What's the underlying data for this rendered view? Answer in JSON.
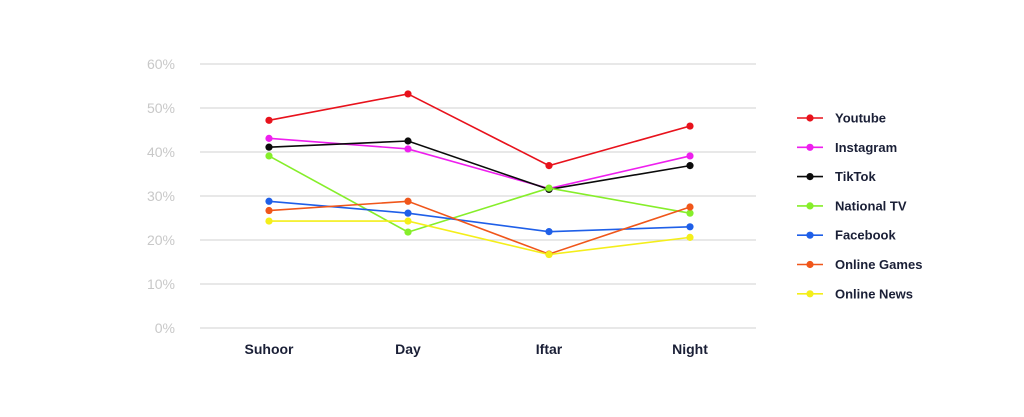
{
  "chart_data": {
    "type": "line",
    "categories": [
      "Suhoor",
      "Day",
      "Iftar",
      "Night"
    ],
    "y_ticks": [
      "0%",
      "10%",
      "20%",
      "30%",
      "40%",
      "50%",
      "60%"
    ],
    "ylim": [
      0,
      60
    ],
    "grid": true,
    "legend_placement": "right",
    "series": [
      {
        "name": "Youtube",
        "color": "#e8121c",
        "values": [
          47.2,
          53.2,
          36.9,
          45.9
        ]
      },
      {
        "name": "Instagram",
        "color": "#ee1fee",
        "values": [
          43.1,
          40.7,
          31.7,
          39.1
        ]
      },
      {
        "name": "TikTok",
        "color": "#0b0b0b",
        "values": [
          41.1,
          42.5,
          31.5,
          36.9
        ]
      },
      {
        "name": "National TV",
        "color": "#86ee2a",
        "values": [
          39.1,
          21.8,
          31.8,
          26.1
        ]
      },
      {
        "name": "Facebook",
        "color": "#1f5fe8",
        "values": [
          28.8,
          26.1,
          21.9,
          23.0
        ]
      },
      {
        "name": "Online Games",
        "color": "#f0561a",
        "values": [
          26.7,
          28.8,
          16.8,
          27.5
        ]
      },
      {
        "name": "Online News",
        "color": "#f4ee1a",
        "values": [
          24.3,
          24.3,
          16.7,
          20.6
        ]
      }
    ]
  }
}
